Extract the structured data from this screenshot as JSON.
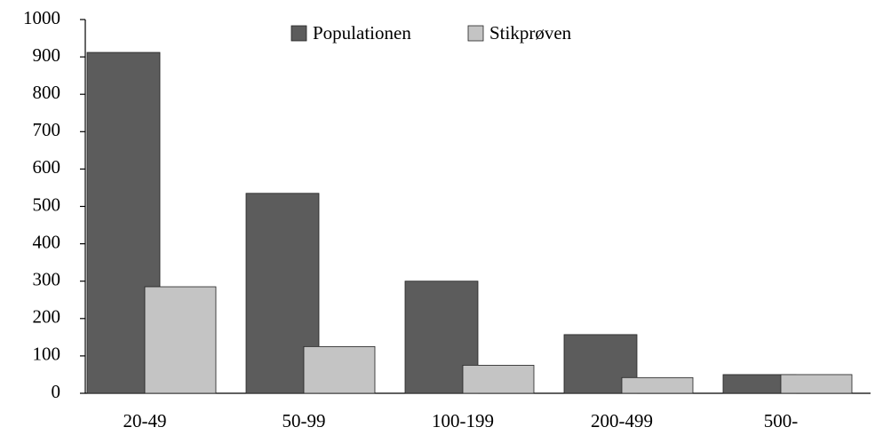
{
  "chart_data": {
    "type": "bar",
    "categories": [
      "20-49",
      "50-99",
      "100-199",
      "200-499",
      "500-"
    ],
    "series": [
      {
        "name": "Populationen",
        "color": "#5c5c5c",
        "values": [
          912,
          535,
          300,
          157,
          50
        ]
      },
      {
        "name": "Stikprøven",
        "color": "#c4c4c4",
        "values": [
          285,
          125,
          75,
          42,
          50
        ]
      }
    ],
    "ylim": [
      0,
      1000
    ],
    "yticks": [
      0,
      100,
      200,
      300,
      400,
      500,
      600,
      700,
      800,
      900,
      1000
    ],
    "legend": "top"
  }
}
